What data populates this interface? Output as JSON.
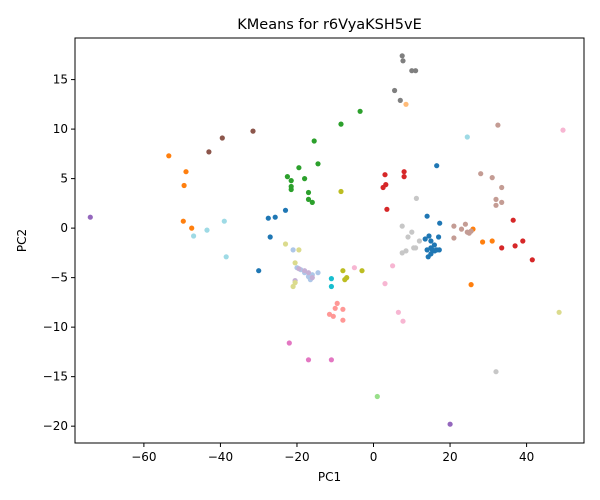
{
  "chart_data": {
    "type": "scatter",
    "title": "KMeans for r6VyaKSH5vE",
    "xlabel": "PC1",
    "ylabel": "PC2",
    "xlim": [
      -78,
      55
    ],
    "ylim": [
      -21.7,
      19.2
    ],
    "xticks": [
      -60,
      -40,
      -20,
      0,
      20,
      40
    ],
    "yticks": [
      -20,
      -15,
      -10,
      -5,
      0,
      5,
      10,
      15
    ],
    "grid": false,
    "legend": false,
    "series": [
      {
        "color": "#1f77b4",
        "points": [
          [
            -30,
            -4.3
          ],
          [
            -27.5,
            1
          ],
          [
            -27,
            -0.9
          ],
          [
            -25.7,
            1.1
          ],
          [
            -23,
            1.8
          ],
          [
            13.5,
            -1.1
          ],
          [
            14,
            1.2
          ],
          [
            14.5,
            -0.8
          ],
          [
            15,
            -1.3
          ],
          [
            15,
            -2
          ],
          [
            15.4,
            -2.2
          ],
          [
            15.9,
            -1.7
          ],
          [
            14,
            -2.2
          ],
          [
            14.3,
            -2.9
          ],
          [
            15,
            -2.6
          ],
          [
            16,
            -2.3
          ],
          [
            16.5,
            -2.2
          ],
          [
            17,
            -0.9
          ],
          [
            17.2,
            -2.2
          ],
          [
            16.5,
            6.3
          ],
          [
            17.3,
            0.5
          ]
        ]
      },
      {
        "color": "#ff7f0e",
        "points": [
          [
            -53.5,
            7.3
          ],
          [
            -49,
            5.7
          ],
          [
            -49.5,
            4.3
          ],
          [
            -49.7,
            0.7
          ],
          [
            -47.5,
            0
          ],
          [
            26,
            -0.1
          ],
          [
            28.5,
            -1.4
          ],
          [
            31,
            -1.3
          ],
          [
            25.5,
            -5.7
          ]
        ]
      },
      {
        "color": "#2ca02c",
        "points": [
          [
            -22.5,
            5.2
          ],
          [
            -21.5,
            4.8
          ],
          [
            -21.5,
            4.2
          ],
          [
            -21.5,
            3.9
          ],
          [
            -19.5,
            6.1
          ],
          [
            -18,
            5
          ],
          [
            -17,
            3.6
          ],
          [
            -17,
            2.9
          ],
          [
            -16,
            2.6
          ],
          [
            -14.5,
            6.5
          ],
          [
            -15.5,
            8.8
          ],
          [
            -8.5,
            10.5
          ],
          [
            -3.5,
            11.8
          ]
        ]
      },
      {
        "color": "#d62728",
        "points": [
          [
            2.5,
            4.1
          ],
          [
            3,
            5.4
          ],
          [
            3.2,
            4.4
          ],
          [
            3.5,
            1.9
          ],
          [
            8,
            5.7
          ],
          [
            8,
            5.2
          ],
          [
            33.5,
            -2
          ],
          [
            36.5,
            0.8
          ],
          [
            37,
            -1.8
          ],
          [
            39,
            -1.3
          ],
          [
            41.5,
            -3.2
          ]
        ]
      },
      {
        "color": "#9467bd",
        "points": [
          [
            -74,
            1.1
          ],
          [
            20,
            -19.8
          ]
        ]
      },
      {
        "color": "#8c564b",
        "points": [
          [
            -39.5,
            9.1
          ],
          [
            -43,
            7.7
          ],
          [
            -31.5,
            9.8
          ]
        ]
      },
      {
        "color": "#e377c2",
        "points": [
          [
            -22,
            -11.6
          ],
          [
            -17,
            -13.3
          ],
          [
            -11,
            -13.3
          ]
        ]
      },
      {
        "color": "#7f7f7f",
        "points": [
          [
            7.5,
            17.4
          ],
          [
            7.7,
            16.9
          ],
          [
            10,
            15.9
          ],
          [
            11,
            15.9
          ],
          [
            5.5,
            13.9
          ],
          [
            7,
            12.9
          ]
        ]
      },
      {
        "color": "#bcbd22",
        "points": [
          [
            -8.5,
            3.7
          ],
          [
            -8,
            -4.3
          ],
          [
            -7.5,
            -5.2
          ],
          [
            -7,
            -5
          ],
          [
            -3,
            -4.3
          ]
        ]
      },
      {
        "color": "#17becf",
        "points": [
          [
            -11,
            -5.1
          ],
          [
            -11,
            -5.9
          ]
        ]
      },
      {
        "color": "#aec7e8",
        "points": [
          [
            -21,
            -2.2
          ],
          [
            -20,
            -4
          ],
          [
            -19,
            -4.2
          ],
          [
            -18,
            -4.5
          ],
          [
            -17,
            -4.9
          ],
          [
            -16.5,
            -5.2
          ],
          [
            -16,
            -4.7
          ],
          [
            -14.5,
            -4.5
          ]
        ]
      },
      {
        "color": "#ffbb78",
        "points": [
          [
            8.5,
            12.5
          ]
        ]
      },
      {
        "color": "#98df8a",
        "points": [
          [
            1,
            -17
          ]
        ]
      },
      {
        "color": "#ff9896",
        "points": [
          [
            -9.5,
            -7.6
          ],
          [
            -10,
            -8.1
          ],
          [
            -11.5,
            -8.7
          ],
          [
            -10.5,
            -8.9
          ],
          [
            -8,
            -8.2
          ],
          [
            -8,
            -9.3
          ]
        ]
      },
      {
        "color": "#c5b0d5",
        "points": [
          [
            -19.5,
            -4.1
          ],
          [
            -18,
            -4.3
          ],
          [
            -17,
            -4.5
          ],
          [
            -16,
            -5
          ],
          [
            -20.5,
            -5.3
          ]
        ]
      },
      {
        "color": "#c49c94",
        "points": [
          [
            21,
            0.2
          ],
          [
            21,
            -1
          ],
          [
            23,
            -0.1
          ],
          [
            24,
            0.4
          ],
          [
            24.5,
            -0.4
          ],
          [
            25,
            -0.5
          ],
          [
            25.5,
            -0.3
          ],
          [
            28,
            5.5
          ],
          [
            31,
            5.1
          ],
          [
            32,
            2.9
          ],
          [
            32,
            2.3
          ],
          [
            32.5,
            10.4
          ],
          [
            33.5,
            4.1
          ],
          [
            33.5,
            2.6
          ]
        ]
      },
      {
        "color": "#f7b6d2",
        "points": [
          [
            -5,
            -4
          ],
          [
            3,
            -5.6
          ],
          [
            5,
            -3.8
          ],
          [
            6.5,
            -8.5
          ],
          [
            7.7,
            -9.4
          ],
          [
            49.5,
            9.9
          ]
        ]
      },
      {
        "color": "#c7c7c7",
        "points": [
          [
            7.5,
            0.2
          ],
          [
            7.5,
            -2.5
          ],
          [
            8.5,
            -2.3
          ],
          [
            9,
            -0.9
          ],
          [
            10,
            -0.4
          ],
          [
            10.5,
            -2
          ],
          [
            11,
            -2
          ],
          [
            11.2,
            3
          ],
          [
            12,
            -1.3
          ],
          [
            32,
            -14.5
          ]
        ]
      },
      {
        "color": "#dbdb8d",
        "points": [
          [
            -23,
            -1.6
          ],
          [
            -20.5,
            -3.5
          ],
          [
            -19.5,
            -2.2
          ],
          [
            -21,
            -5.9
          ],
          [
            -20.5,
            -5.5
          ],
          [
            48.5,
            -8.5
          ]
        ]
      },
      {
        "color": "#9edae5",
        "points": [
          [
            -47,
            -0.8
          ],
          [
            -43.5,
            -0.2
          ],
          [
            -39,
            0.7
          ],
          [
            -38.5,
            -2.9
          ],
          [
            24.5,
            9.2
          ]
        ]
      }
    ]
  }
}
